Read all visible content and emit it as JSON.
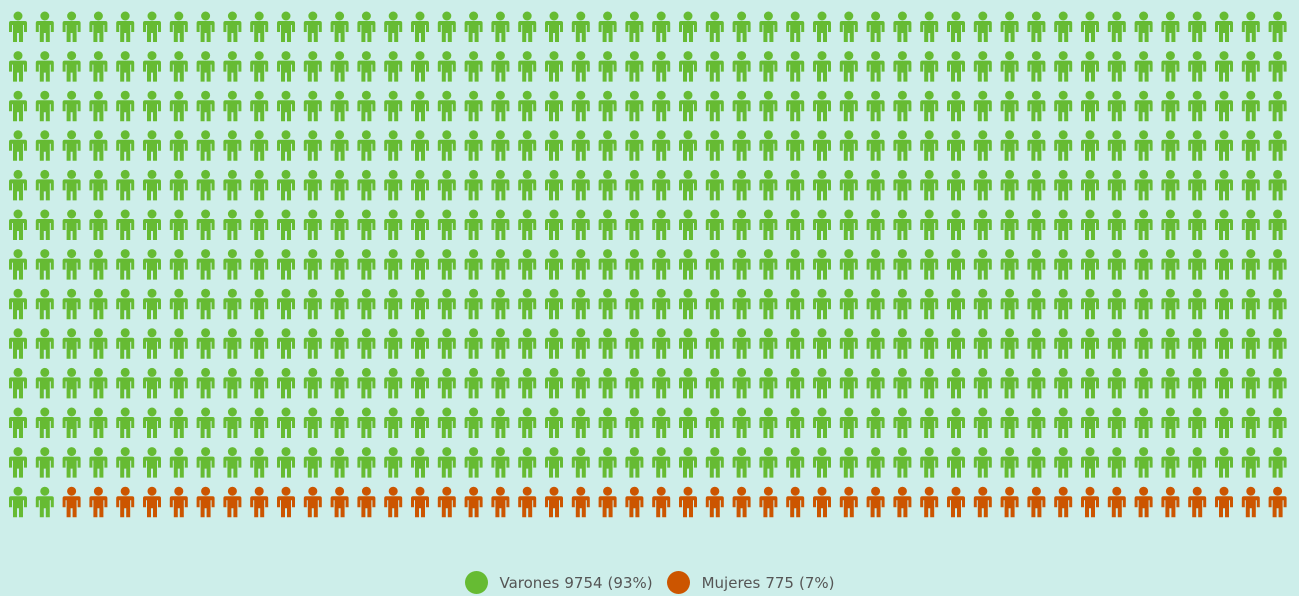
{
  "chart_data": {
    "type": "pictogram",
    "series": [
      {
        "name": "Varones",
        "color": "#66bb33",
        "value": 9754,
        "percent_label": "(93%)"
      },
      {
        "name": "Mujeres",
        "color": "#cc5500",
        "value": 775,
        "percent_label": "(7%)"
      }
    ]
  }
}
